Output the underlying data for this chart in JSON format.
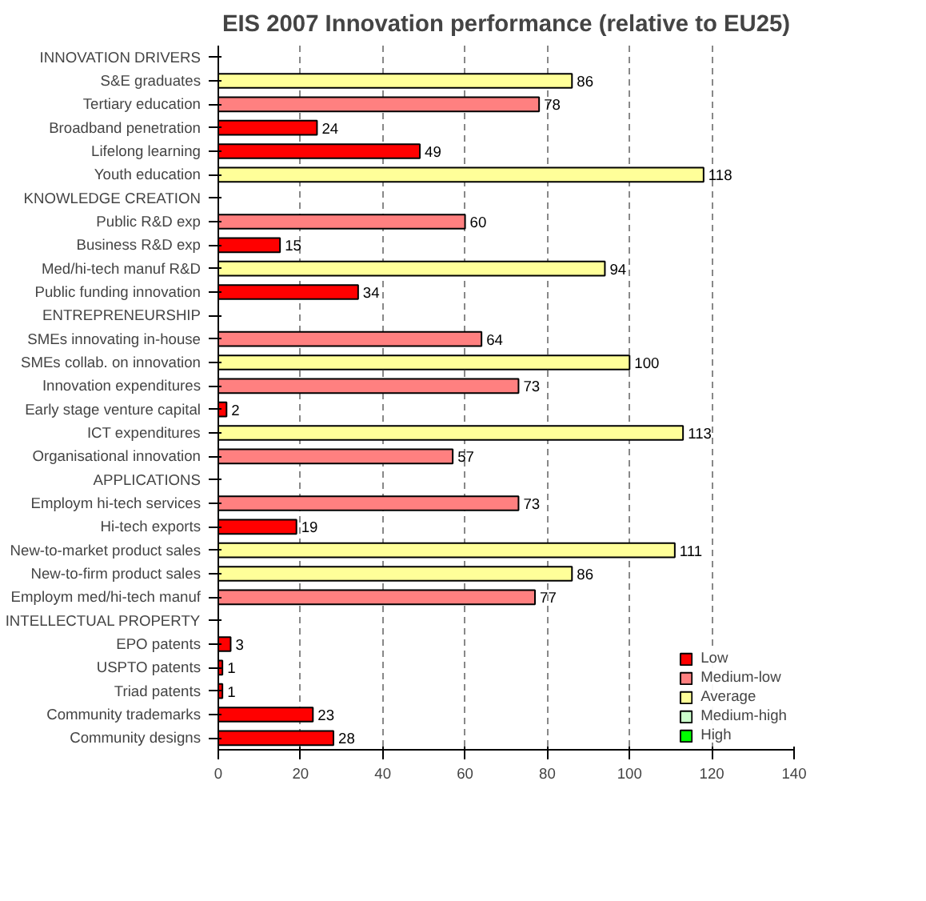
{
  "chart_data": {
    "type": "bar",
    "orientation": "horizontal",
    "title": "EIS 2007 Innovation performance (relative to EU25)",
    "categories": [
      "INNOVATION DRIVERS",
      "S&E graduates",
      "Tertiary education",
      "Broadband penetration",
      "Lifelong learning",
      "Youth education",
      "KNOWLEDGE CREATION",
      "Public R&D exp",
      "Business R&D exp",
      "Med/hi-tech manuf R&D",
      "Public funding innovation",
      "ENTREPRENEURSHIP",
      "SMEs innovating in-house",
      "SMEs collab. on innovation",
      "Innovation expenditures",
      "Early stage venture capital",
      "ICT expenditures",
      "Organisational innovation",
      "APPLICATIONS",
      "Employm hi-tech services",
      "Hi-tech exports",
      "New-to-market product sales",
      "New-to-firm product sales",
      "Employm med/hi-tech manuf",
      "INTELLECTUAL PROPERTY",
      "EPO patents",
      "USPTO patents",
      "Triad patents",
      "Community trademarks",
      "Community designs"
    ],
    "series": [
      {
        "name": "Low",
        "color": "#ff0000",
        "values": [
          null,
          null,
          null,
          24,
          49,
          null,
          null,
          null,
          15,
          null,
          34,
          null,
          null,
          null,
          null,
          2,
          null,
          null,
          null,
          null,
          19,
          null,
          null,
          null,
          null,
          3,
          1,
          1,
          23,
          28
        ]
      },
      {
        "name": "Medium-low",
        "color": "#ff8080",
        "values": [
          null,
          null,
          78,
          null,
          null,
          null,
          null,
          60,
          null,
          null,
          null,
          null,
          64,
          null,
          73,
          null,
          null,
          57,
          null,
          73,
          null,
          null,
          null,
          77,
          null,
          null,
          null,
          null,
          null,
          null
        ]
      },
      {
        "name": "Average",
        "color": "#ffff99",
        "values": [
          null,
          86,
          null,
          null,
          null,
          118,
          null,
          null,
          null,
          94,
          null,
          null,
          null,
          100,
          null,
          null,
          113,
          null,
          null,
          null,
          null,
          111,
          86,
          null,
          null,
          null,
          null,
          null,
          null,
          null
        ]
      },
      {
        "name": "Medium-high",
        "color": "#ccffcc",
        "values": [
          null,
          null,
          null,
          null,
          null,
          null,
          null,
          null,
          null,
          null,
          null,
          null,
          null,
          null,
          null,
          null,
          null,
          null,
          null,
          null,
          null,
          null,
          null,
          null,
          null,
          null,
          null,
          null,
          null,
          null
        ]
      },
      {
        "name": "High",
        "color": "#00ff00",
        "values": [
          null,
          null,
          null,
          null,
          null,
          null,
          null,
          null,
          null,
          null,
          null,
          null,
          null,
          null,
          null,
          null,
          null,
          null,
          null,
          null,
          null,
          null,
          null,
          null,
          null,
          null,
          null,
          null,
          null,
          null
        ]
      }
    ],
    "xlim": [
      0,
      140
    ],
    "xticks": [
      0,
      20,
      40,
      60,
      80,
      100,
      120,
      140
    ],
    "grid": "x",
    "legend": "bottom right",
    "data_labels": true
  }
}
